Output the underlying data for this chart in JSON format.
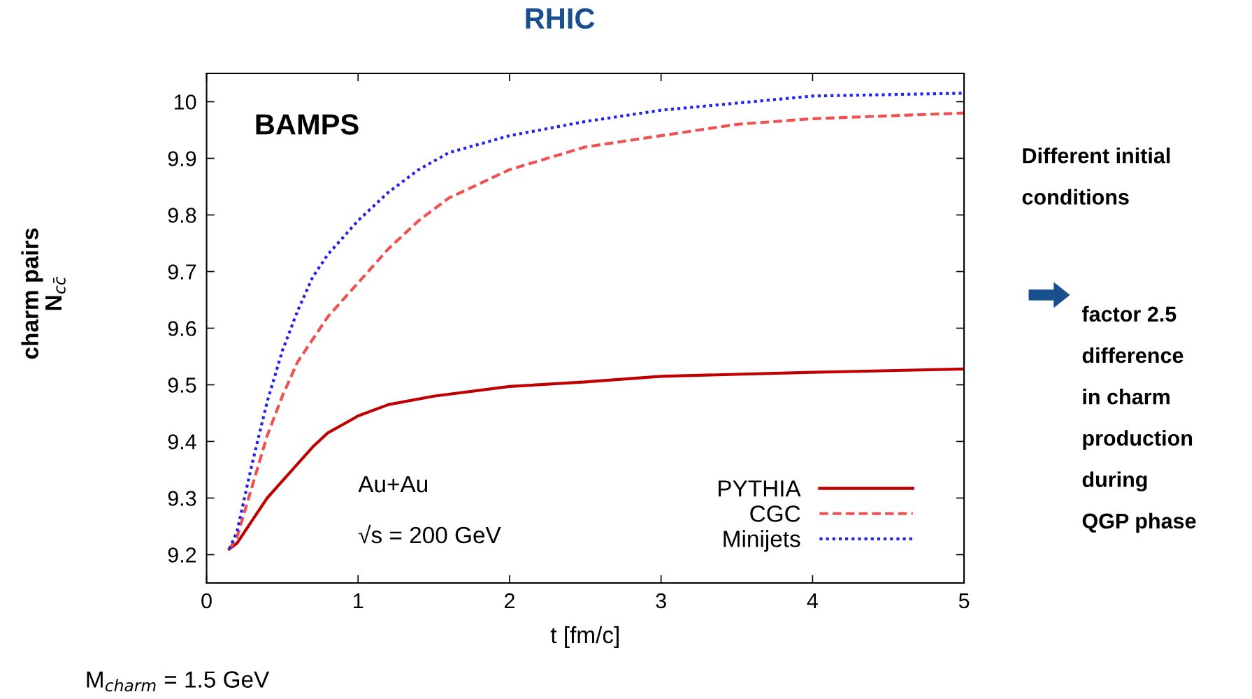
{
  "chart_data": {
    "type": "line",
    "title": "RHIC",
    "xlabel": "t [fm/c]",
    "ylabel": "charm pairs\nN$_{cc̄}$",
    "xlim": [
      0,
      5
    ],
    "ylim": [
      9.15,
      10.05
    ],
    "xticks": [
      0,
      1,
      2,
      3,
      4,
      5
    ],
    "yticks": [
      9.2,
      9.3,
      9.4,
      9.5,
      9.6,
      9.7,
      9.8,
      9.9,
      {
        "value": 10,
        "label": "10"
      }
    ],
    "grid": false,
    "legend": "bottom right",
    "marker": "none",
    "series": [
      {
        "name": "PYTHIA",
        "color": "#c00000",
        "line_style": "solid",
        "x": [
          0.15,
          0.2,
          0.3,
          0.4,
          0.5,
          0.6,
          0.7,
          0.8,
          0.9,
          1.0,
          1.2,
          1.5,
          2.0,
          2.5,
          3.0,
          4.0,
          5.0
        ],
        "values": [
          9.21,
          9.22,
          9.26,
          9.3,
          9.33,
          9.36,
          9.39,
          9.415,
          9.43,
          9.445,
          9.465,
          9.48,
          9.497,
          9.505,
          9.515,
          9.522,
          9.528
        ]
      },
      {
        "name": "CGC",
        "color": "#f05050",
        "line_style": "dashed",
        "x": [
          0.15,
          0.2,
          0.3,
          0.4,
          0.5,
          0.6,
          0.7,
          0.8,
          1.0,
          1.2,
          1.4,
          1.6,
          2.0,
          2.5,
          3.0,
          3.5,
          4.0,
          5.0
        ],
        "values": [
          9.21,
          9.23,
          9.32,
          9.41,
          9.48,
          9.54,
          9.58,
          9.62,
          9.68,
          9.74,
          9.79,
          9.83,
          9.88,
          9.92,
          9.94,
          9.96,
          9.97,
          9.98
        ]
      },
      {
        "name": "Minijets",
        "color": "#2020f0",
        "line_style": "dotted",
        "x": [
          0.15,
          0.2,
          0.3,
          0.4,
          0.5,
          0.6,
          0.7,
          0.8,
          1.0,
          1.2,
          1.4,
          1.6,
          2.0,
          2.5,
          3.0,
          4.0,
          5.0
        ],
        "values": [
          9.21,
          9.24,
          9.36,
          9.47,
          9.56,
          9.63,
          9.69,
          9.73,
          9.79,
          9.84,
          9.88,
          9.91,
          9.94,
          9.965,
          9.985,
          10.01,
          10.015
        ]
      }
    ],
    "annotations": [
      "BAMPS",
      "Au+Au",
      "√s = 200 GeV",
      "M$_{charm}$ = 1.5 GeV",
      "Different initial\n\nconditions",
      "factor 2.5\n\ndifference\n\nin charm\n\nproduction\n\nduring\n\nQGP phase"
    ]
  }
}
